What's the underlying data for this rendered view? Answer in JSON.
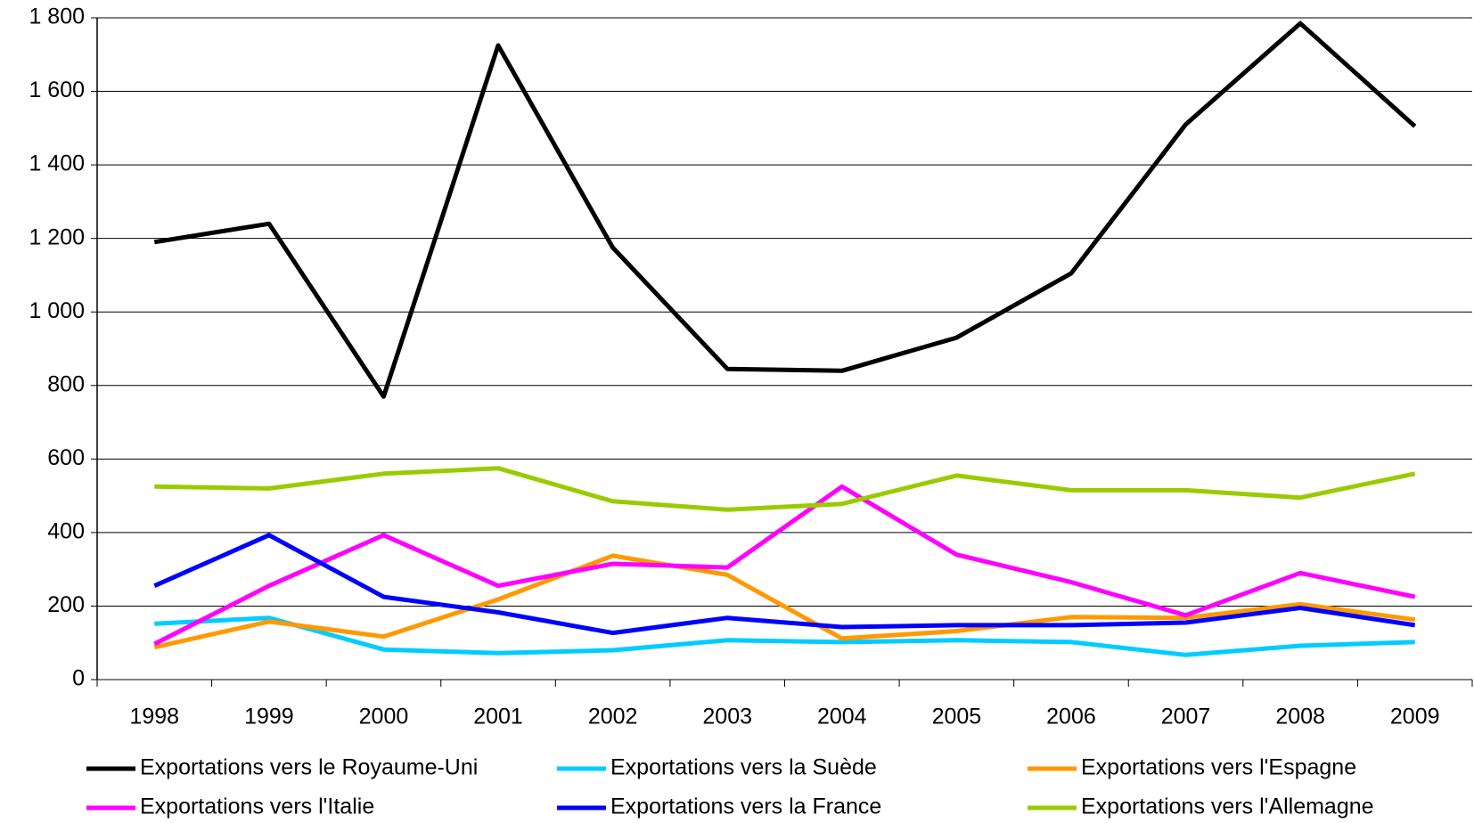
{
  "chart_data": {
    "type": "line",
    "categories": [
      "1998",
      "1999",
      "2000",
      "2001",
      "2002",
      "2003",
      "2004",
      "2005",
      "2006",
      "2007",
      "2008",
      "2009"
    ],
    "series": [
      {
        "name": "Exportations vers le Royaume-Uni",
        "color": "#000000",
        "values": [
          1190,
          1240,
          770,
          1725,
          1175,
          845,
          840,
          930,
          1105,
          1510,
          1785,
          1505
        ]
      },
      {
        "name": "Exportations vers la Suède",
        "color": "#00ccff",
        "values": [
          152,
          168,
          82,
          72,
          80,
          107,
          102,
          107,
          102,
          67,
          92,
          102
        ]
      },
      {
        "name": "Exportations vers l'Espagne",
        "color": "#ff9900",
        "values": [
          88,
          158,
          117,
          218,
          337,
          285,
          112,
          132,
          170,
          168,
          205,
          163
        ]
      },
      {
        "name": "Exportations vers l'Italie",
        "color": "#ff00ff",
        "values": [
          97,
          255,
          393,
          255,
          315,
          305,
          525,
          340,
          265,
          175,
          290,
          225
        ]
      },
      {
        "name": "Exportations vers la France",
        "color": "#0000ff",
        "values": [
          255,
          393,
          225,
          183,
          127,
          168,
          143,
          148,
          148,
          155,
          195,
          148
        ]
      },
      {
        "name": "Exportations vers l'Allemagne",
        "color": "#99cc00",
        "values": [
          525,
          520,
          560,
          575,
          485,
          462,
          478,
          555,
          515,
          515,
          495,
          560
        ]
      }
    ],
    "ylim": [
      0,
      1800
    ],
    "yticks": [
      0,
      200,
      400,
      600,
      800,
      {
        "value": 1000,
        "label": "1 000"
      },
      {
        "value": 1200,
        "label": "1 200"
      },
      {
        "value": 1400,
        "label": "1 400"
      },
      {
        "value": 1600,
        "label": "1 600"
      },
      {
        "value": 1800,
        "label": "1 800"
      }
    ],
    "grid": true,
    "legend": "bottom"
  }
}
